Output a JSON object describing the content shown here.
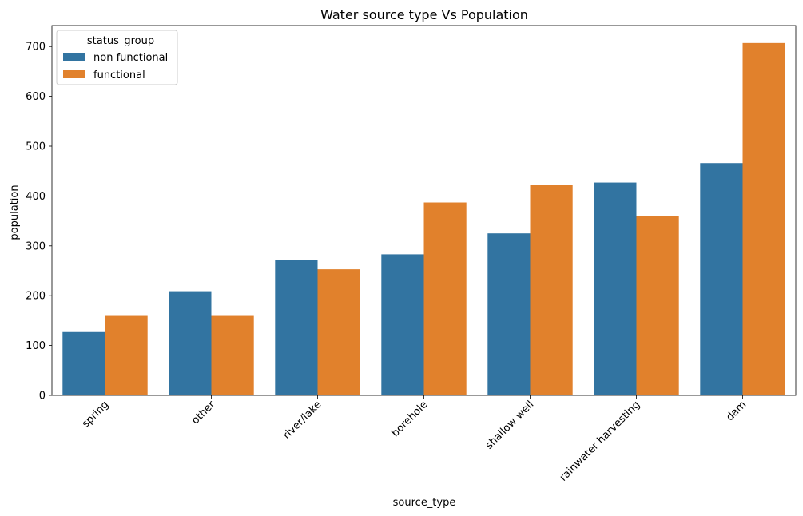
{
  "chart_data": {
    "type": "bar",
    "title": "Water source type Vs Population",
    "xlabel": "source_type",
    "ylabel": "population",
    "categories": [
      "spring",
      "other",
      "river/lake",
      "borehole",
      "shallow well",
      "rainwater harvesting",
      "dam"
    ],
    "series": [
      {
        "name": "non functional",
        "color": "#3274a1",
        "values": [
          127,
          209,
          272,
          283,
          325,
          427,
          466
        ]
      },
      {
        "name": "functional",
        "color": "#e1812c",
        "values": [
          161,
          161,
          253,
          387,
          422,
          359,
          707
        ]
      }
    ],
    "yticks": [
      0,
      100,
      200,
      300,
      400,
      500,
      600,
      700
    ],
    "ylim": [
      0,
      742
    ],
    "grid": false,
    "legend": {
      "title": "status_group",
      "placement": "top-left"
    }
  }
}
